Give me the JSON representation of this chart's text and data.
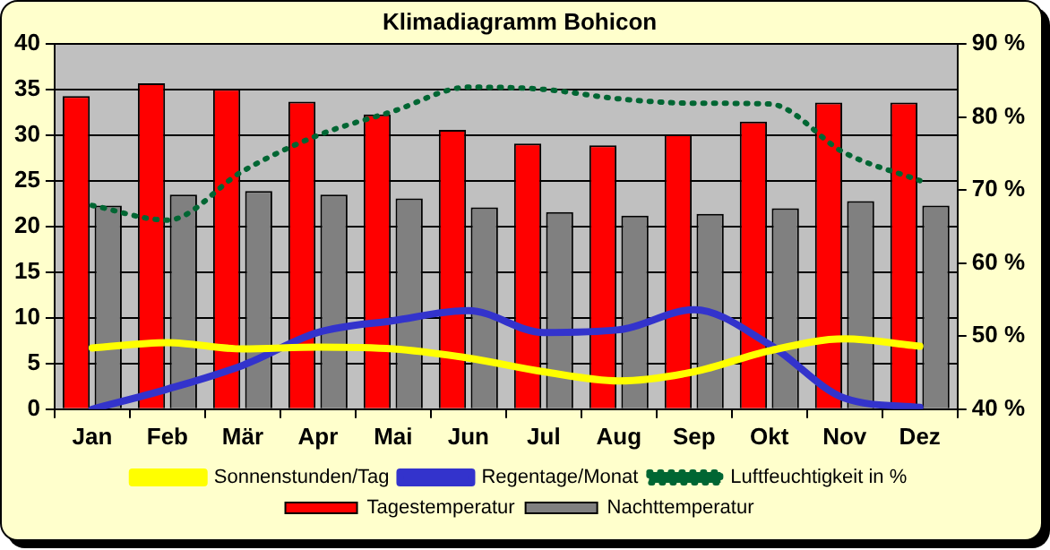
{
  "chart_data": {
    "type": "bar",
    "title": "Klimadiagramm Bohicon",
    "categories": [
      "Jan",
      "Feb",
      "Mär",
      "Apr",
      "Mai",
      "Jun",
      "Jul",
      "Aug",
      "Sep",
      "Okt",
      "Nov",
      "Dez"
    ],
    "series": [
      {
        "name": "Tagestemperatur",
        "color": "#ff0000",
        "values": [
          34.3,
          35.7,
          35.1,
          33.7,
          32.3,
          30.6,
          29.1,
          28.9,
          30.1,
          31.5,
          33.6,
          33.6
        ]
      },
      {
        "name": "Nachttemperatur",
        "color": "#808080",
        "values": [
          22.3,
          23.5,
          23.9,
          23.5,
          23.1,
          22.1,
          21.6,
          21.2,
          21.4,
          22.0,
          22.8,
          22.3
        ]
      },
      {
        "name": "Sonnenstunden/Tag",
        "type": "line",
        "color": "#ffff00",
        "line_style": "solid",
        "values": [
          6.7,
          7.3,
          6.6,
          6.8,
          6.6,
          5.6,
          4.1,
          3.1,
          4.1,
          6.4,
          7.7,
          6.9
        ]
      },
      {
        "name": "Regentage/Monat",
        "type": "line",
        "color": "#3333cc",
        "line_style": "solid",
        "values": [
          0,
          2.2,
          4.8,
          8.4,
          9.7,
          10.8,
          8.4,
          8.7,
          10.9,
          7.1,
          1.2,
          0.2
        ]
      },
      {
        "name": "Luftfeuchtigkeit in %",
        "type": "line",
        "axis": "y2",
        "color": "#006633",
        "line_style": "dotted",
        "values": [
          67.9,
          65.9,
          72.6,
          77.5,
          80.8,
          84.1,
          83.8,
          82.5,
          81.9,
          81.8,
          75.1,
          71.3
        ]
      }
    ],
    "ylim": [
      0,
      40
    ],
    "yticks": [
      0,
      5,
      10,
      15,
      20,
      25,
      30,
      35,
      40
    ],
    "y2lim": [
      40,
      90
    ],
    "y2ticks": [
      {
        "value": 40,
        "label": "40 %"
      },
      {
        "value": 50,
        "label": "50 %"
      },
      {
        "value": 60,
        "label": "60 %"
      },
      {
        "value": 70,
        "label": "70 %"
      },
      {
        "value": 80,
        "label": "80 %"
      },
      {
        "value": 90,
        "label": "90 %"
      }
    ],
    "grid": "y",
    "legend": "bottom",
    "marker": "none"
  }
}
